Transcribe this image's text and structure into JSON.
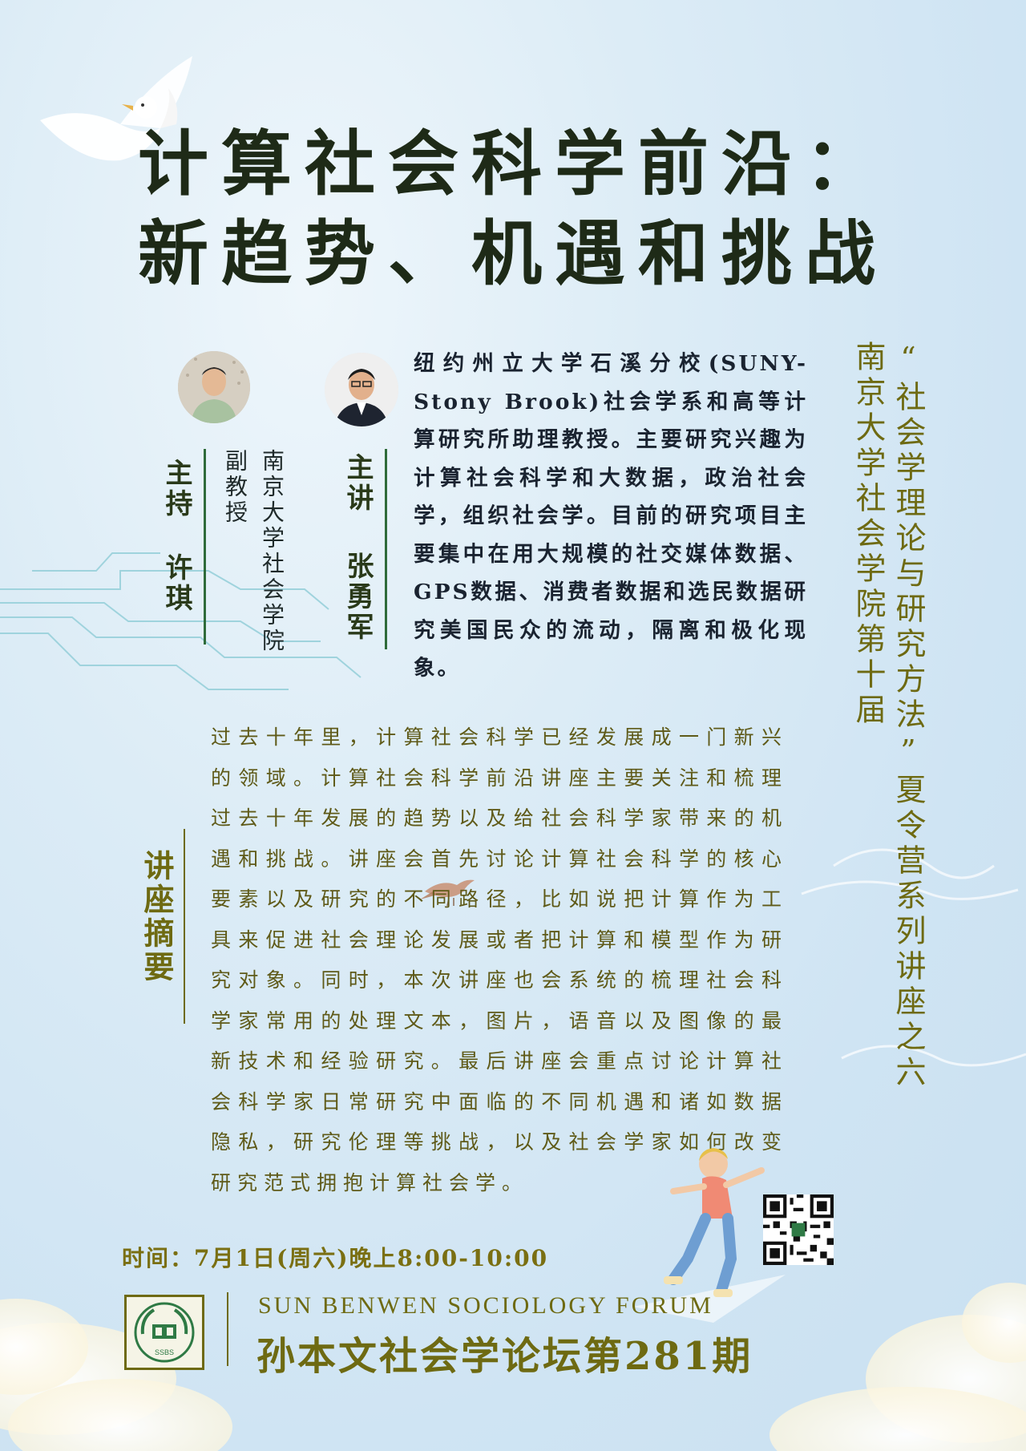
{
  "title": {
    "line1": "计算社会科学前沿：",
    "line2": "新趋势、机遇和挑战"
  },
  "series": {
    "left_column": "南京大学社会学院第十届",
    "right_column": "“社会学理论与研究方法”夏令营系列讲座之六"
  },
  "host": {
    "role": "主持",
    "name": "许琪",
    "affiliation": "南京大学社会学院副教授"
  },
  "speaker": {
    "role": "主讲",
    "name": "张勇军",
    "bio": "纽约州立大学石溪分校(SUNY-Stony Brook)社会学系和高等计算研究所助理教授。主要研究兴趣为计算社会科学和大数据，政治社会学，组织社会学。目前的研究项目主要集中在用大规模的社交媒体数据、GPS数据、消费者数据和选民数据研究美国民众的流动，隔离和极化现象。"
  },
  "abstract": {
    "heading": "讲座摘要",
    "text": "过去十年里，计算社会科学已经发展成一门新兴的领域。计算社会科学前沿讲座主要关注和梳理过去十年发展的趋势以及给社会科学家带来的机遇和挑战。讲座会首先讨论计算社会科学的核心要素以及研究的不同路径，比如说把计算作为工具来促进社会理论发展或者把计算和模型作为研究对象。同时，本次讲座也会系统的梳理社会科学家常用的处理文本，图片，语音以及图像的最新技术和经验研究。最后讲座会重点讨论计算社会科学家日常研究中面临的不同机遇和诸如数据隐私，研究伦理等挑战，以及社会学家如何改变研究范式拥抱计算社会学。"
  },
  "time": "时间：7月1日(周六)晚上8:00-10:00",
  "forum": {
    "english": "SUN BENWEN SOCIOLOGY FORUM",
    "chinese": "孙本文社会学论坛第281期",
    "logo_text": "SSBS"
  },
  "icons": [
    "dove-icon",
    "bird-icon",
    "qr-code-icon",
    "forum-logo-icon",
    "host-avatar",
    "speaker-avatar",
    "person-illustration"
  ],
  "colors": {
    "title": "#1e2a17",
    "olive": "#6e6a12",
    "green_bar": "#2f6b3a",
    "circuit": "#9fd3dd"
  }
}
